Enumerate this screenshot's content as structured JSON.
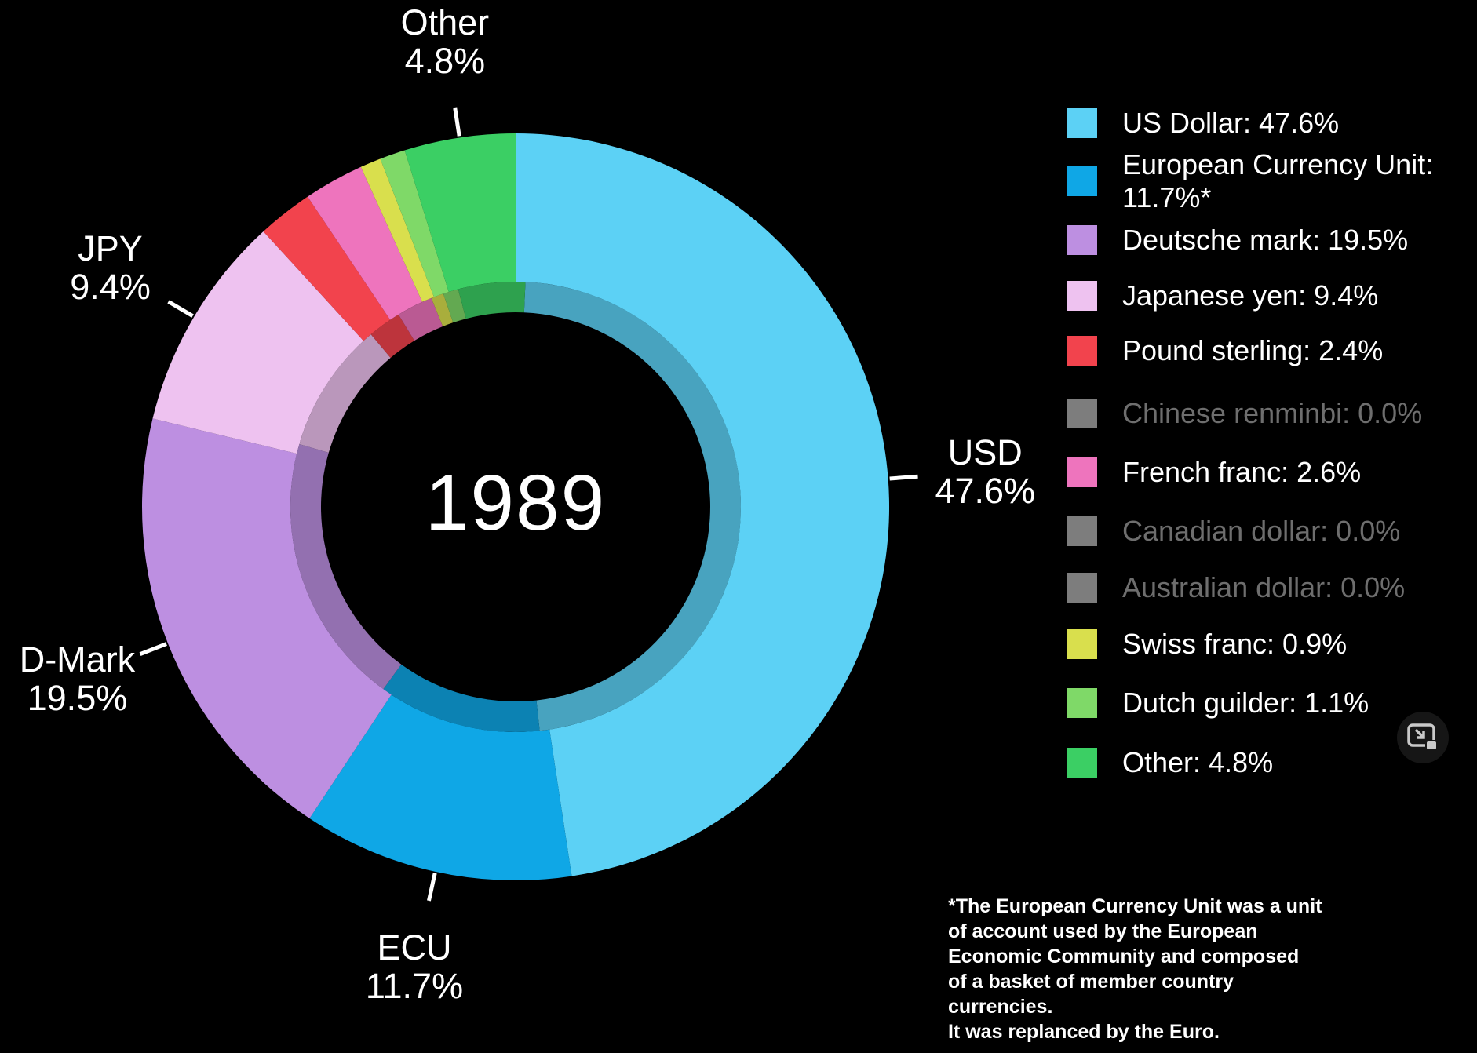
{
  "year": "1989",
  "background_color": "#000000",
  "chart_data": {
    "type": "pie",
    "subtype": "donut",
    "title": "1989",
    "start_angle_deg": 0,
    "direction": "clockwise",
    "legend_position": "right",
    "series": [
      {
        "name": "US Dollar",
        "value": 47.6,
        "color": "#5cd1f5",
        "legend_label": "US Dollar: 47.6%",
        "callout_line1": "USD",
        "callout_line2": "47.6%"
      },
      {
        "name": "European Currency Unit",
        "value": 11.7,
        "color": "#0fa7e6",
        "legend_label": "European Currency Unit:\n11.7%*",
        "callout_line1": "ECU",
        "callout_line2": "11.7%"
      },
      {
        "name": "Deutsche mark",
        "value": 19.5,
        "color": "#bd8fe1",
        "legend_label": "Deutsche mark: 19.5%",
        "callout_line1": "D-Mark",
        "callout_line2": "19.5%"
      },
      {
        "name": "Japanese yen",
        "value": 9.4,
        "color": "#eec2f0",
        "legend_label": "Japanese yen: 9.4%",
        "callout_line1": "JPY",
        "callout_line2": "9.4%"
      },
      {
        "name": "Pound sterling",
        "value": 2.4,
        "color": "#f2434d",
        "legend_label": "Pound sterling: 2.4%",
        "callout_line1": null,
        "callout_line2": null
      },
      {
        "name": "Chinese renminbi",
        "value": 0.0,
        "color": "#7d7d7d",
        "legend_label": "Chinese renminbi: 0.0%",
        "callout_line1": null,
        "callout_line2": null
      },
      {
        "name": "French franc",
        "value": 2.6,
        "color": "#ee74bd",
        "legend_label": "French franc: 2.6%",
        "callout_line1": null,
        "callout_line2": null
      },
      {
        "name": "Canadian dollar",
        "value": 0.0,
        "color": "#7d7d7d",
        "legend_label": "Canadian dollar: 0.0%",
        "callout_line1": null,
        "callout_line2": null
      },
      {
        "name": "Australian dollar",
        "value": 0.0,
        "color": "#7d7d7d",
        "legend_label": "Australian dollar: 0.0%",
        "callout_line1": null,
        "callout_line2": null
      },
      {
        "name": "Swiss franc",
        "value": 0.9,
        "color": "#d9df4d",
        "legend_label": "Swiss franc: 0.9%",
        "callout_line1": null,
        "callout_line2": null
      },
      {
        "name": "Dutch guilder",
        "value": 1.1,
        "color": "#7fd968",
        "legend_label": "Dutch guilder: 1.1%",
        "callout_line1": null,
        "callout_line2": null
      },
      {
        "name": "Other",
        "value": 4.8,
        "color": "#3bcf64",
        "legend_label": "Other: 4.8%",
        "callout_line1": "Other",
        "callout_line2": "4.8%"
      }
    ],
    "wheel_order": [
      "US Dollar",
      "European Currency Unit",
      "Deutsche mark",
      "Japanese yen",
      "Pound sterling",
      "French franc",
      "Swiss franc",
      "Dutch guilder",
      "Other"
    ]
  },
  "footnote": {
    "lines": [
      "*The European Currency Unit was a unit",
      "of account used by the European",
      "Economic Community and composed",
      "of a basket of member country currencies.",
      "It was replanced by the Euro."
    ]
  },
  "icons": {
    "pip_icon_color": "#c9c9c9"
  },
  "styles": {
    "tick_color": "#ffffff",
    "muted_text_color": "#6e6e6e",
    "trail_darken_factor": 0.78
  }
}
